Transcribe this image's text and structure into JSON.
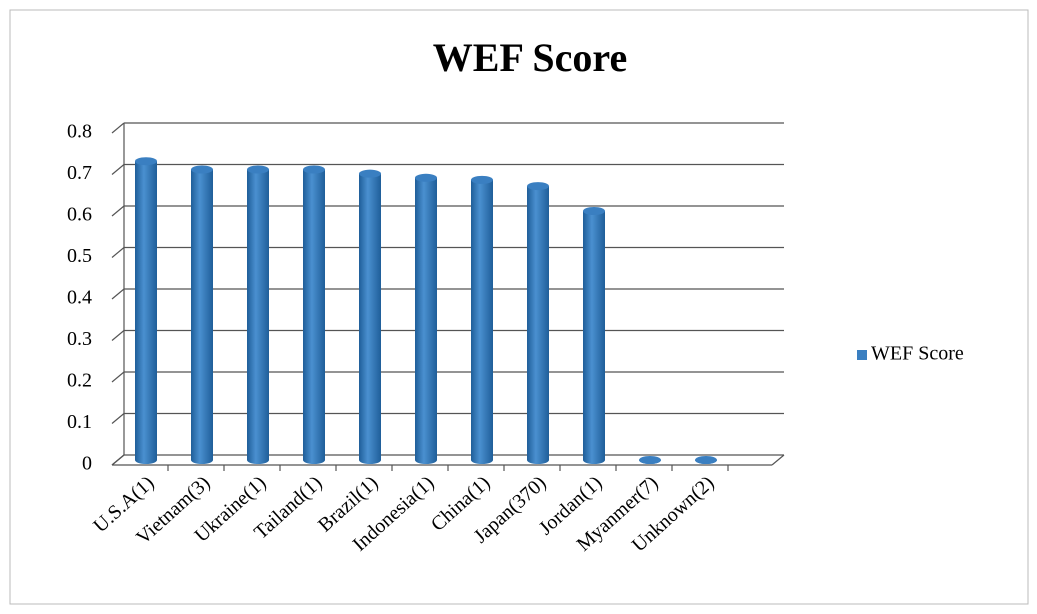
{
  "chart_data": {
    "type": "bar",
    "title": "WEF Score",
    "categories": [
      "U.S.A(1)",
      "Vietnam(3)",
      "Ukraine(1)",
      "Tailand(1)",
      "Brazil(1)",
      "Indonesia(1)",
      "China(1)",
      "Japan(370)",
      "Jordan(1)",
      "Myanmer(7)",
      "Unknown(2)"
    ],
    "series": [
      {
        "name": "WEF Score",
        "color": "#3a7fc1",
        "values": [
          0.72,
          0.7,
          0.7,
          0.7,
          0.69,
          0.68,
          0.675,
          0.66,
          0.6,
          0,
          0
        ]
      }
    ],
    "ylim": [
      0,
      0.8
    ],
    "yticks": [
      0,
      0.1,
      0.2,
      0.3,
      0.4,
      0.5,
      0.6,
      0.7,
      0.8
    ],
    "grid": true,
    "legend": "right"
  }
}
